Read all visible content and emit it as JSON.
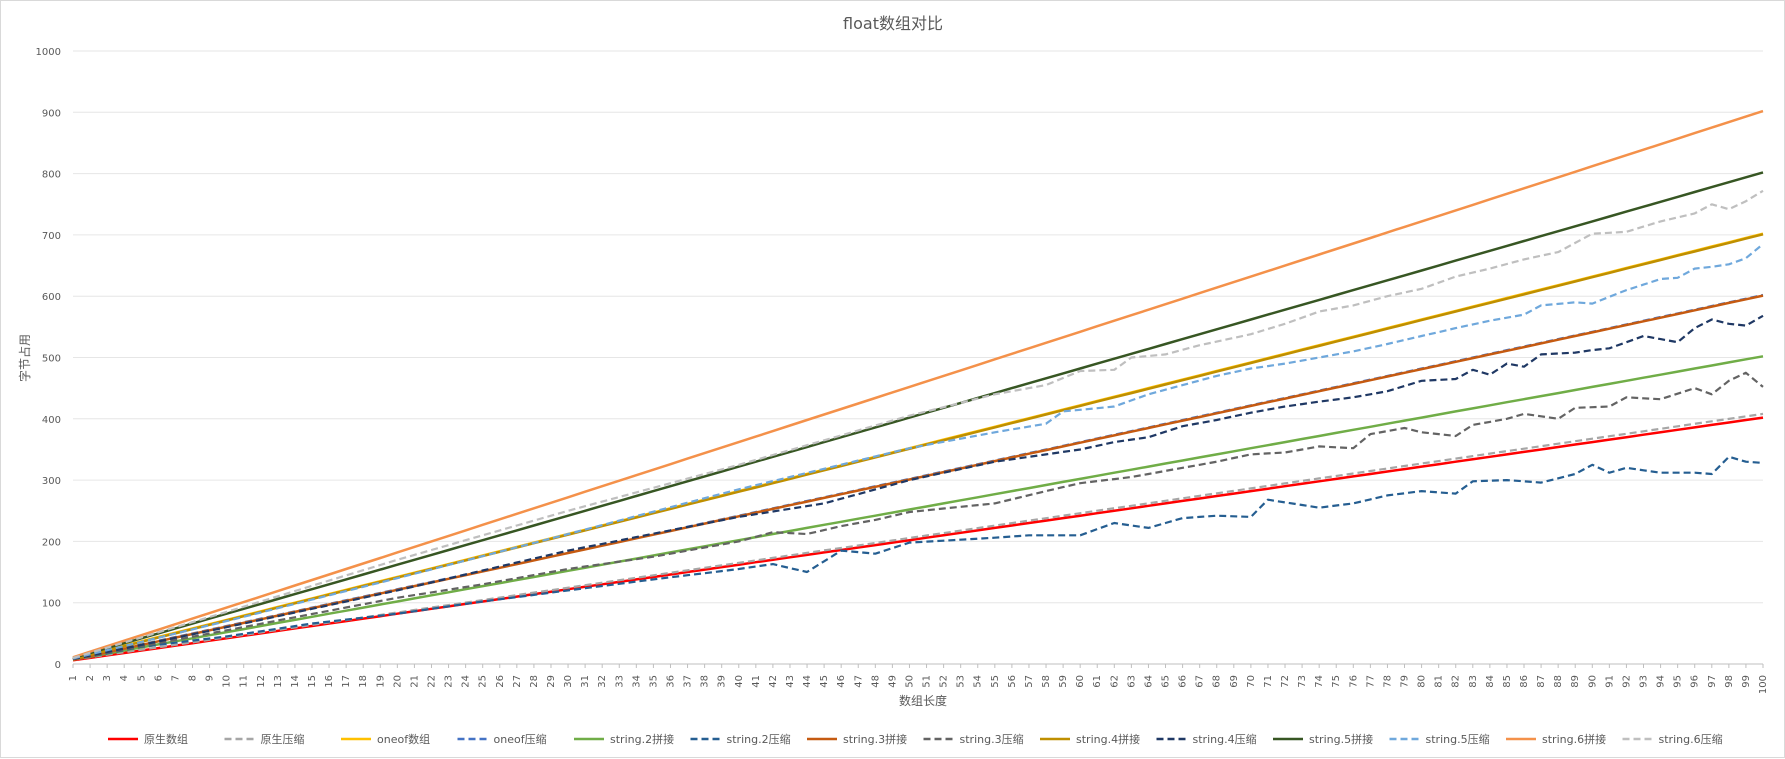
{
  "chart_data": {
    "type": "line",
    "title": "float数组对比",
    "xlabel": "数组长度",
    "ylabel": "字节占用",
    "ylim": [
      0,
      1000
    ],
    "yticks": [
      0,
      100,
      200,
      300,
      400,
      500,
      600,
      700,
      800,
      900,
      1000
    ],
    "x": [
      1,
      2,
      3,
      4,
      5,
      6,
      7,
      8,
      9,
      10,
      11,
      12,
      13,
      14,
      15,
      16,
      17,
      18,
      19,
      20,
      21,
      22,
      23,
      24,
      25,
      26,
      27,
      28,
      29,
      30,
      31,
      32,
      33,
      34,
      35,
      36,
      37,
      38,
      39,
      40,
      41,
      42,
      43,
      44,
      45,
      46,
      47,
      48,
      49,
      50,
      51,
      52,
      53,
      54,
      55,
      56,
      57,
      58,
      59,
      60,
      61,
      62,
      63,
      64,
      65,
      66,
      67,
      68,
      69,
      70,
      71,
      72,
      73,
      74,
      75,
      76,
      77,
      78,
      79,
      80,
      81,
      82,
      83,
      84,
      85,
      86,
      87,
      88,
      89,
      90,
      91,
      92,
      93,
      94,
      95,
      96,
      97,
      98,
      99,
      100
    ],
    "grid": true,
    "legend_position": "bottom",
    "series": [
      {
        "name": "原生数组",
        "color": "#ff0000",
        "dash": false,
        "slope": 4,
        "intercept": 2,
        "points": [
          [
            1,
            6
          ],
          [
            10,
            42
          ],
          [
            20,
            82
          ],
          [
            30,
            122
          ],
          [
            40,
            162
          ],
          [
            50,
            202
          ],
          [
            60,
            242
          ],
          [
            70,
            282
          ],
          [
            80,
            322
          ],
          [
            90,
            362
          ],
          [
            100,
            402
          ]
        ]
      },
      {
        "name": "原生压缩",
        "color": "#a6a6a6",
        "dash": true,
        "slope": 4.05,
        "intercept": 3,
        "points": [
          [
            1,
            7
          ],
          [
            10,
            44
          ],
          [
            20,
            84
          ],
          [
            30,
            124
          ],
          [
            40,
            165
          ],
          [
            50,
            205
          ],
          [
            60,
            246
          ],
          [
            70,
            287
          ],
          [
            80,
            327
          ],
          [
            90,
            368
          ],
          [
            100,
            408
          ]
        ]
      },
      {
        "name": "oneof数组",
        "color": "#ffc000",
        "dash": false,
        "slope": 7,
        "intercept": 2,
        "points": [
          [
            1,
            9
          ],
          [
            10,
            72
          ],
          [
            20,
            142
          ],
          [
            30,
            212
          ],
          [
            40,
            282
          ],
          [
            50,
            352
          ],
          [
            60,
            422
          ],
          [
            70,
            492
          ],
          [
            80,
            562
          ],
          [
            90,
            632
          ],
          [
            100,
            702
          ]
        ]
      },
      {
        "name": "oneof压缩",
        "color": "#4472c4",
        "dash": true,
        "slope": 6,
        "intercept": 2,
        "points": [
          [
            1,
            8
          ],
          [
            10,
            62
          ],
          [
            20,
            125
          ],
          [
            30,
            190
          ],
          [
            40,
            250
          ],
          [
            50,
            305
          ],
          [
            60,
            365
          ],
          [
            70,
            425
          ],
          [
            80,
            485
          ],
          [
            90,
            540
          ],
          [
            100,
            600
          ]
        ]
      },
      {
        "name": "string.2拼接",
        "color": "#70ad47",
        "dash": false,
        "slope": 5,
        "intercept": 2,
        "points": [
          [
            1,
            7
          ],
          [
            10,
            52
          ],
          [
            20,
            102
          ],
          [
            30,
            152
          ],
          [
            40,
            200
          ],
          [
            50,
            252
          ],
          [
            60,
            302
          ],
          [
            70,
            352
          ],
          [
            80,
            402
          ],
          [
            90,
            452
          ],
          [
            100,
            502
          ]
        ]
      },
      {
        "name": "string.2压缩",
        "color": "#255e91",
        "dash": true,
        "points": [
          [
            1,
            7
          ],
          [
            5,
            28
          ],
          [
            10,
            45
          ],
          [
            15,
            66
          ],
          [
            20,
            82
          ],
          [
            25,
            102
          ],
          [
            30,
            120
          ],
          [
            35,
            138
          ],
          [
            40,
            155
          ],
          [
            42,
            163
          ],
          [
            44,
            150
          ],
          [
            46,
            185
          ],
          [
            48,
            180
          ],
          [
            50,
            198
          ],
          [
            55,
            206
          ],
          [
            57,
            210
          ],
          [
            60,
            210
          ],
          [
            62,
            230
          ],
          [
            64,
            222
          ],
          [
            66,
            238
          ],
          [
            68,
            242
          ],
          [
            70,
            240
          ],
          [
            71,
            268
          ],
          [
            74,
            255
          ],
          [
            76,
            262
          ],
          [
            78,
            275
          ],
          [
            80,
            282
          ],
          [
            82,
            278
          ],
          [
            83,
            298
          ],
          [
            85,
            300
          ],
          [
            87,
            296
          ],
          [
            89,
            310
          ],
          [
            90,
            325
          ],
          [
            91,
            312
          ],
          [
            92,
            320
          ],
          [
            94,
            312
          ],
          [
            96,
            312
          ],
          [
            97,
            310
          ],
          [
            98,
            338
          ],
          [
            99,
            330
          ],
          [
            100,
            328
          ]
        ]
      },
      {
        "name": "string.3拼接",
        "color": "#c55a11",
        "dash": false,
        "slope": 6,
        "intercept": 1,
        "points": [
          [
            1,
            7
          ],
          [
            10,
            61
          ],
          [
            20,
            121
          ],
          [
            30,
            181
          ],
          [
            40,
            241
          ],
          [
            50,
            301
          ],
          [
            60,
            361
          ],
          [
            70,
            421
          ],
          [
            80,
            481
          ],
          [
            90,
            541
          ],
          [
            100,
            601
          ]
        ]
      },
      {
        "name": "string.3压缩",
        "color": "#636363",
        "dash": true,
        "points": [
          [
            1,
            8
          ],
          [
            10,
            55
          ],
          [
            20,
            108
          ],
          [
            25,
            130
          ],
          [
            30,
            155
          ],
          [
            35,
            175
          ],
          [
            40,
            200
          ],
          [
            42,
            215
          ],
          [
            44,
            212
          ],
          [
            46,
            225
          ],
          [
            48,
            235
          ],
          [
            50,
            248
          ],
          [
            55,
            262
          ],
          [
            58,
            282
          ],
          [
            60,
            295
          ],
          [
            63,
            305
          ],
          [
            65,
            315
          ],
          [
            68,
            330
          ],
          [
            70,
            342
          ],
          [
            72,
            345
          ],
          [
            74,
            355
          ],
          [
            76,
            352
          ],
          [
            77,
            375
          ],
          [
            79,
            385
          ],
          [
            80,
            378
          ],
          [
            82,
            372
          ],
          [
            83,
            390
          ],
          [
            85,
            400
          ],
          [
            86,
            408
          ],
          [
            88,
            400
          ],
          [
            89,
            418
          ],
          [
            91,
            420
          ],
          [
            92,
            435
          ],
          [
            94,
            432
          ],
          [
            96,
            450
          ],
          [
            97,
            440
          ],
          [
            98,
            462
          ],
          [
            99,
            475
          ],
          [
            100,
            452
          ]
        ]
      },
      {
        "name": "string.4拼接",
        "color": "#bf8f00",
        "dash": false,
        "slope": 7,
        "intercept": 1,
        "points": [
          [
            1,
            8
          ],
          [
            10,
            71
          ],
          [
            20,
            141
          ],
          [
            30,
            211
          ],
          [
            40,
            281
          ],
          [
            50,
            351
          ],
          [
            60,
            421
          ],
          [
            70,
            491
          ],
          [
            80,
            561
          ],
          [
            90,
            631
          ],
          [
            100,
            701
          ]
        ]
      },
      {
        "name": "string.4压缩",
        "color": "#1f3864",
        "dash": true,
        "points": [
          [
            1,
            8
          ],
          [
            10,
            60
          ],
          [
            20,
            120
          ],
          [
            30,
            185
          ],
          [
            40,
            240
          ],
          [
            45,
            262
          ],
          [
            50,
            300
          ],
          [
            55,
            330
          ],
          [
            58,
            342
          ],
          [
            60,
            350
          ],
          [
            62,
            362
          ],
          [
            64,
            370
          ],
          [
            66,
            388
          ],
          [
            68,
            398
          ],
          [
            70,
            410
          ],
          [
            72,
            420
          ],
          [
            74,
            428
          ],
          [
            76,
            435
          ],
          [
            78,
            445
          ],
          [
            80,
            462
          ],
          [
            82,
            465
          ],
          [
            83,
            480
          ],
          [
            84,
            472
          ],
          [
            85,
            490
          ],
          [
            86,
            485
          ],
          [
            87,
            505
          ],
          [
            89,
            508
          ],
          [
            90,
            512
          ],
          [
            91,
            515
          ],
          [
            93,
            535
          ],
          [
            95,
            525
          ],
          [
            96,
            548
          ],
          [
            97,
            562
          ],
          [
            98,
            555
          ],
          [
            99,
            552
          ],
          [
            100,
            568
          ]
        ]
      },
      {
        "name": "string.5拼接",
        "color": "#375623",
        "dash": false,
        "slope": 8,
        "intercept": 2,
        "points": [
          [
            1,
            10
          ],
          [
            10,
            82
          ],
          [
            20,
            162
          ],
          [
            30,
            242
          ],
          [
            40,
            322
          ],
          [
            50,
            402
          ],
          [
            60,
            482
          ],
          [
            70,
            562
          ],
          [
            80,
            642
          ],
          [
            90,
            722
          ],
          [
            100,
            802
          ]
        ]
      },
      {
        "name": "string.5压缩",
        "color": "#6fa8dc",
        "dash": true,
        "points": [
          [
            1,
            9
          ],
          [
            10,
            70
          ],
          [
            20,
            140
          ],
          [
            30,
            212
          ],
          [
            40,
            285
          ],
          [
            50,
            352
          ],
          [
            55,
            378
          ],
          [
            58,
            392
          ],
          [
            59,
            412
          ],
          [
            62,
            420
          ],
          [
            64,
            440
          ],
          [
            66,
            455
          ],
          [
            68,
            470
          ],
          [
            70,
            482
          ],
          [
            72,
            490
          ],
          [
            74,
            500
          ],
          [
            76,
            510
          ],
          [
            78,
            522
          ],
          [
            80,
            535
          ],
          [
            82,
            548
          ],
          [
            84,
            560
          ],
          [
            86,
            570
          ],
          [
            87,
            585
          ],
          [
            89,
            590
          ],
          [
            90,
            588
          ],
          [
            92,
            610
          ],
          [
            94,
            628
          ],
          [
            95,
            630
          ],
          [
            96,
            645
          ],
          [
            97,
            648
          ],
          [
            98,
            652
          ],
          [
            99,
            662
          ],
          [
            100,
            685
          ]
        ]
      },
      {
        "name": "string.6拼接",
        "color": "#f4914a",
        "dash": false,
        "slope": 9,
        "intercept": 2,
        "points": [
          [
            1,
            11
          ],
          [
            10,
            92
          ],
          [
            20,
            182
          ],
          [
            30,
            272
          ],
          [
            40,
            362
          ],
          [
            50,
            452
          ],
          [
            60,
            542
          ],
          [
            70,
            632
          ],
          [
            80,
            722
          ],
          [
            90,
            812
          ],
          [
            100,
            902
          ]
        ]
      },
      {
        "name": "string.6压缩",
        "color": "#bfbfbf",
        "dash": true,
        "points": [
          [
            1,
            10
          ],
          [
            10,
            85
          ],
          [
            20,
            170
          ],
          [
            30,
            250
          ],
          [
            40,
            325
          ],
          [
            50,
            405
          ],
          [
            55,
            440
          ],
          [
            58,
            455
          ],
          [
            60,
            478
          ],
          [
            62,
            480
          ],
          [
            63,
            500
          ],
          [
            65,
            505
          ],
          [
            67,
            520
          ],
          [
            70,
            538
          ],
          [
            72,
            555
          ],
          [
            74,
            575
          ],
          [
            76,
            585
          ],
          [
            78,
            600
          ],
          [
            80,
            612
          ],
          [
            82,
            632
          ],
          [
            84,
            645
          ],
          [
            86,
            660
          ],
          [
            88,
            672
          ],
          [
            90,
            702
          ],
          [
            92,
            705
          ],
          [
            94,
            722
          ],
          [
            96,
            735
          ],
          [
            97,
            750
          ],
          [
            98,
            742
          ],
          [
            99,
            755
          ],
          [
            100,
            772
          ]
        ]
      }
    ]
  }
}
